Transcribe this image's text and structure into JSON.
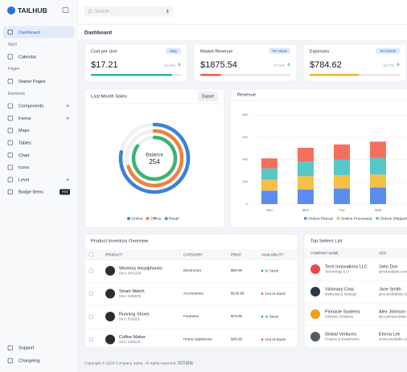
{
  "sidebar": {
    "brand": "TAILHUB",
    "groups": [
      {
        "items": [
          {
            "label": "Dashboard",
            "active": true
          }
        ]
      },
      {
        "heading": "Apps",
        "items": [
          {
            "label": "Calendar"
          }
        ]
      },
      {
        "heading": "Pages",
        "items": [
          {
            "label": "Starter Pages"
          }
        ]
      },
      {
        "heading": "Elements",
        "items": [
          {
            "label": "Components",
            "expandable": true
          },
          {
            "label": "Forms",
            "expandable": true
          },
          {
            "label": "Maps"
          },
          {
            "label": "Tables"
          },
          {
            "label": "Chart"
          },
          {
            "label": "Icons"
          },
          {
            "label": "Level",
            "expandable": true
          },
          {
            "label": "Badge Items",
            "badge": "Hot"
          }
        ]
      }
    ],
    "footer": [
      "Support",
      "Changelog"
    ]
  },
  "header": {
    "search_placeholder": "Search..."
  },
  "page_title": "Dashboard",
  "cards": [
    {
      "title": "Cost per Unit",
      "period": "Daily",
      "value": "$17.21",
      "change": "10.5%",
      "progress": 90,
      "color": "#2bb3a3"
    },
    {
      "title": "Market Revenue",
      "period": "Per Week",
      "value": "$1875.54",
      "change": "27.5%",
      "progress": 23,
      "color": "#ef5a4c"
    },
    {
      "title": "Expenses",
      "period": "Per Month",
      "value": "$784.62",
      "change": "16.7%",
      "progress": 55,
      "color": "#f2b632"
    }
  ],
  "chart_data": [
    {
      "type": "radial",
      "title": "Last Month Sales",
      "button": "Export",
      "center_label": "Balance",
      "center_value": 254,
      "ylim": [
        0,
        100
      ],
      "series": [
        {
          "name": "Online",
          "color": "#3b82d6",
          "value": 78
        },
        {
          "name": "Offline",
          "color": "#f0803c",
          "value": 70
        },
        {
          "name": "Retail",
          "color": "#3cb371",
          "value": 85
        }
      ]
    },
    {
      "type": "bar",
      "stacked": true,
      "title": "Revenue",
      "categories": [
        "Sun",
        "Mon",
        "Tue",
        "Wed"
      ],
      "ylim": [
        0,
        800
      ],
      "yticks": [
        0,
        200,
        400,
        600,
        800
      ],
      "grid": true,
      "series": [
        {
          "name": "Orders Placed",
          "color": "#5b8def",
          "values": [
            120,
            130,
            140,
            150
          ]
        },
        {
          "name": "Orders Processed",
          "color": "#f5c048",
          "values": [
            100,
            120,
            120,
            115
          ]
        },
        {
          "name": "Orders Shipped",
          "color": "#56c8c8",
          "values": [
            100,
            130,
            140,
            150
          ]
        },
        {
          "color": "#f4705e",
          "values": [
            90,
            125,
            135,
            145
          ]
        }
      ]
    }
  ],
  "inventory": {
    "title": "Product Inventory Overview",
    "columns": [
      "PRODUCT",
      "CATEGORY",
      "PRICE",
      "AVAILABILITY"
    ],
    "rows": [
      {
        "name": "Wireless Headphones",
        "sku": "SKU: WH1234",
        "category": "Electronics",
        "price": "$99.99",
        "availability": "In Stock",
        "available": true
      },
      {
        "name": "Smart Watch",
        "sku": "SKU: SW5678",
        "category": "Accessories",
        "price": "$149.99",
        "availability": "Out of Stock",
        "available": false
      },
      {
        "name": "Running Shoes",
        "sku": "SKU: RS9101",
        "category": "Footwear",
        "price": "$79.99",
        "availability": "In Stock",
        "available": true
      },
      {
        "name": "Coffee Maker",
        "sku": "SKU: CM1122",
        "category": "Home Appliances",
        "price": "$49.99",
        "availability": "Out of Stock",
        "available": false
      }
    ]
  },
  "sellers": {
    "title": "Top Sellers List",
    "columns": [
      "COMPANY NAME",
      "CEO"
    ],
    "rows": [
      {
        "company": "Tech Innovations LLC",
        "sector": "Technology & AI",
        "ceo": "John Doe",
        "email": "johndoe@abc.com",
        "logo": "#e94b4b"
      },
      {
        "company": "Visionary Corp",
        "sector": "Marketing & Strategy",
        "ceo": "Jane Smith",
        "email": "jane.smith@abc.com",
        "logo": "#2d3640"
      },
      {
        "company": "Pinnacle Systems",
        "sector": "Software Solutions",
        "ceo": "Alex Johnson",
        "email": "alex.johnson@abc.com",
        "logo": "#f0a020"
      },
      {
        "company": "Global Ventures",
        "sector": "Finance & Investments",
        "ceo": "Emma Lee",
        "email": "emma.lee@abc.com",
        "logo": "#555b63"
      }
    ]
  },
  "footer": "Copyright © 2026 Company name. All rights reserved. 网页模板"
}
